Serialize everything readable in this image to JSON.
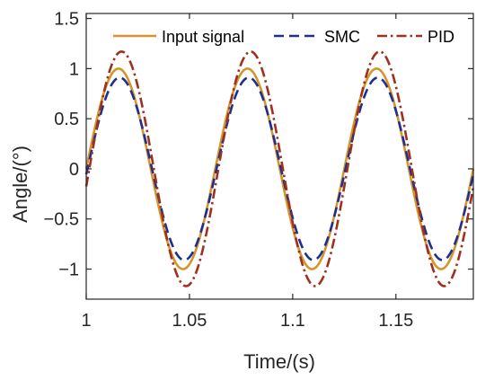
{
  "chart_data": {
    "type": "line",
    "xlabel": "Time/(s)",
    "ylabel": "Angle/(°)",
    "xlim": [
      1.0,
      1.1875
    ],
    "ylim": [
      -1.3,
      1.55
    ],
    "x_ticks": [
      "1",
      "1.05",
      "1.1",
      "1.15"
    ],
    "x_tick_values": [
      1.0,
      1.05,
      1.1,
      1.15
    ],
    "y_ticks": [
      "1.5",
      "1",
      "0.5",
      "0",
      "−0.5",
      "−1"
    ],
    "y_tick_values": [
      1.5,
      1.0,
      0.5,
      0.0,
      -0.5,
      -1.0
    ],
    "grid": false,
    "legend_position": "top",
    "sine_period_s": 0.0625,
    "sine_start_s": 1.0,
    "series": [
      {
        "name": "Input signal",
        "amplitude": 1.0,
        "phase_lag_s": 0.0,
        "color": "#D4952B",
        "style": "solid"
      },
      {
        "name": "SMC",
        "amplitude": 0.91,
        "phase_lag_s": 0.0006,
        "color": "#1F2F8F",
        "style": "dash"
      },
      {
        "name": "PID",
        "amplitude": 1.17,
        "phase_lag_s": 0.0015,
        "color": "#A0301E",
        "style": "dashdot"
      }
    ]
  }
}
